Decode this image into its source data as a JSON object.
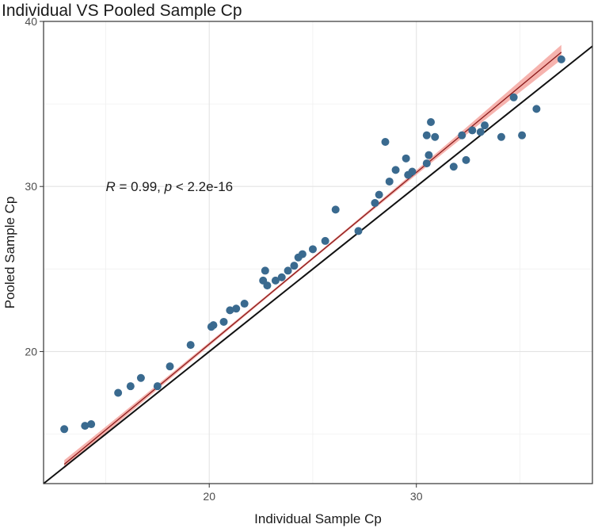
{
  "chart_data": {
    "type": "scatter",
    "title": "Individual VS Pooled Sample Cp",
    "xlabel": "Individual Sample Cp",
    "ylabel": "Pooled Sample Cp",
    "xlim": [
      12.0,
      38.5
    ],
    "ylim": [
      12.0,
      40.0
    ],
    "xticks": [
      20,
      30
    ],
    "yticks": [
      20,
      30,
      40
    ],
    "grid": true,
    "annotation": {
      "r_sym": "R",
      "r_val": " = 0.99, ",
      "p_sym": "p",
      "p_val": " < 2.2e-16",
      "x": 15.0,
      "y": 30.0
    },
    "identity_line": true,
    "fit": {
      "x0": 13.0,
      "x1": 37.0,
      "slope": 1.04,
      "intercept": -0.35,
      "ci_half_width": [
        0.25,
        0.08,
        0.45
      ]
    },
    "point_color": "#3a6a8f",
    "fit_color": "#8b1a1a",
    "band_color": "#f4a6a0",
    "points": [
      {
        "x": 13.0,
        "y": 15.3
      },
      {
        "x": 14.0,
        "y": 15.5
      },
      {
        "x": 14.3,
        "y": 15.6
      },
      {
        "x": 15.6,
        "y": 17.5
      },
      {
        "x": 16.2,
        "y": 17.9
      },
      {
        "x": 16.7,
        "y": 18.4
      },
      {
        "x": 17.5,
        "y": 17.9
      },
      {
        "x": 18.1,
        "y": 19.1
      },
      {
        "x": 19.1,
        "y": 20.4
      },
      {
        "x": 20.1,
        "y": 21.5
      },
      {
        "x": 20.2,
        "y": 21.6
      },
      {
        "x": 20.7,
        "y": 21.8
      },
      {
        "x": 21.0,
        "y": 22.5
      },
      {
        "x": 21.3,
        "y": 22.6
      },
      {
        "x": 21.7,
        "y": 22.9
      },
      {
        "x": 22.6,
        "y": 24.3
      },
      {
        "x": 22.7,
        "y": 24.9
      },
      {
        "x": 22.8,
        "y": 24.0
      },
      {
        "x": 23.2,
        "y": 24.3
      },
      {
        "x": 23.5,
        "y": 24.5
      },
      {
        "x": 23.8,
        "y": 24.9
      },
      {
        "x": 24.1,
        "y": 25.2
      },
      {
        "x": 24.3,
        "y": 25.7
      },
      {
        "x": 24.5,
        "y": 25.9
      },
      {
        "x": 25.0,
        "y": 26.2
      },
      {
        "x": 25.6,
        "y": 26.7
      },
      {
        "x": 26.1,
        "y": 28.6
      },
      {
        "x": 27.2,
        "y": 27.3
      },
      {
        "x": 28.0,
        "y": 29.0
      },
      {
        "x": 28.2,
        "y": 29.5
      },
      {
        "x": 28.5,
        "y": 32.7
      },
      {
        "x": 28.7,
        "y": 30.3
      },
      {
        "x": 29.0,
        "y": 31.0
      },
      {
        "x": 29.5,
        "y": 31.7
      },
      {
        "x": 29.6,
        "y": 30.7
      },
      {
        "x": 29.8,
        "y": 30.9
      },
      {
        "x": 30.5,
        "y": 33.1
      },
      {
        "x": 30.5,
        "y": 31.4
      },
      {
        "x": 30.6,
        "y": 31.9
      },
      {
        "x": 30.7,
        "y": 33.9
      },
      {
        "x": 30.9,
        "y": 33.0
      },
      {
        "x": 31.8,
        "y": 31.2
      },
      {
        "x": 32.2,
        "y": 33.1
      },
      {
        "x": 32.4,
        "y": 31.6
      },
      {
        "x": 32.7,
        "y": 33.4
      },
      {
        "x": 33.1,
        "y": 33.3
      },
      {
        "x": 33.3,
        "y": 33.7
      },
      {
        "x": 34.1,
        "y": 33.0
      },
      {
        "x": 34.7,
        "y": 35.4
      },
      {
        "x": 35.1,
        "y": 33.1
      },
      {
        "x": 35.8,
        "y": 34.7
      },
      {
        "x": 37.0,
        "y": 37.7
      }
    ]
  }
}
